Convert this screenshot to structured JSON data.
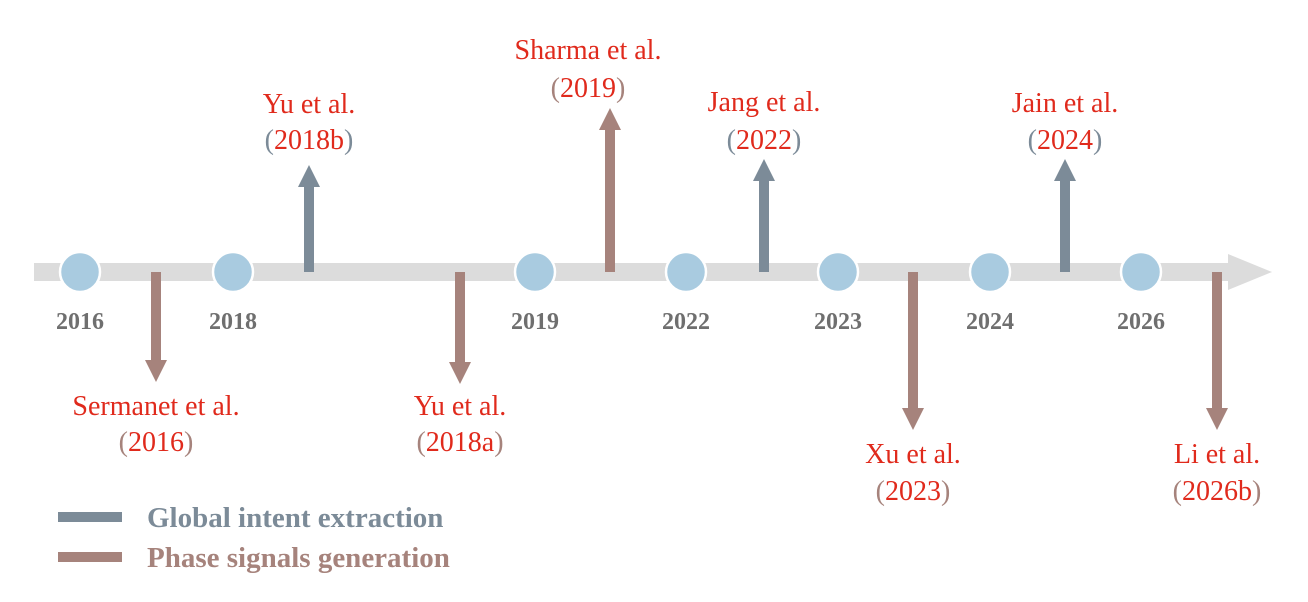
{
  "colors": {
    "axis": "#dcdcdc",
    "node": "#a9cbe0",
    "node_stroke": "#ffffff",
    "global": "#7c8b98",
    "phase": "#a6837c",
    "name_red": "#e02a1c",
    "year_label": "#6f6f6f"
  },
  "years": [
    "2016",
    "2018",
    "2019",
    "2022",
    "2023",
    "2024",
    "2026"
  ],
  "papers": [
    {
      "name": "Sermanet et al.",
      "open": "(",
      "year": "2016",
      "close": ")",
      "kind": "phase",
      "dir": "down"
    },
    {
      "name": "Yu et al.",
      "open": "(",
      "year": "2018b",
      "close": ")",
      "kind": "global",
      "dir": "up"
    },
    {
      "name": "Yu et al.",
      "open": "(",
      "year": "2018a",
      "close": ")",
      "kind": "phase",
      "dir": "down"
    },
    {
      "name": "Sharma et al.",
      "open": "(",
      "year": "2019",
      "close": ")",
      "kind": "phase",
      "dir": "up"
    },
    {
      "name": "Jang et al.",
      "open": "(",
      "year": "2022",
      "close": ")",
      "kind": "global",
      "dir": "up"
    },
    {
      "name": "Xu et al.",
      "open": "(",
      "year": "2023",
      "close": ")",
      "kind": "phase",
      "dir": "down"
    },
    {
      "name": "Jain et al.",
      "open": "(",
      "year": "2024",
      "close": ")",
      "kind": "global",
      "dir": "up"
    },
    {
      "name": "Li et al.",
      "open": "(",
      "year": "2026b",
      "close": ")",
      "kind": "phase",
      "dir": "down"
    }
  ],
  "legend": [
    {
      "label": "Global intent extraction",
      "kind": "global"
    },
    {
      "label": "Phase signals generation",
      "kind": "phase"
    }
  ]
}
